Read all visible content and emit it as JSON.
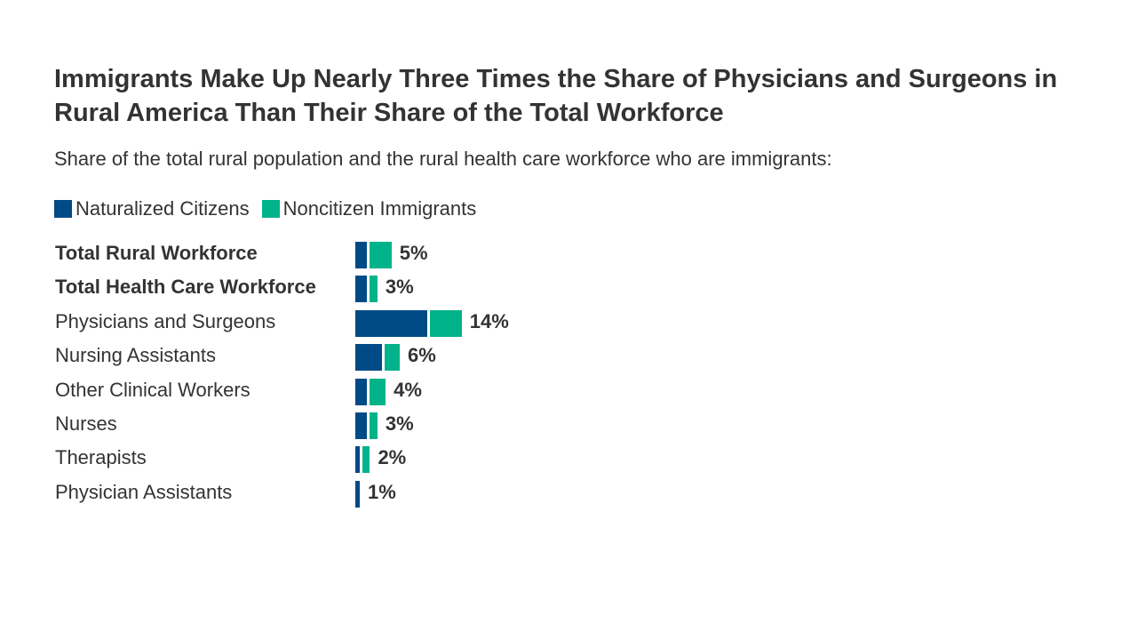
{
  "chart_data": {
    "type": "bar",
    "stacked": true,
    "orientation": "horizontal",
    "title": "Immigrants Make Up Nearly Three Times the Share of Physicians and Surgeons in Rural America Than Their Share of the Total Workforce",
    "subtitle": "Share of the total rural population and the rural health care workforce who are immigrants:",
    "legend_position": "top-left",
    "grid": false,
    "categories": [
      "Total Rural Workforce",
      "Total Health Care Workforce",
      "Physicians and Surgeons",
      "Nursing Assistants",
      "Other Clinical Workers",
      "Nurses",
      "Therapists",
      "Physician Assistants"
    ],
    "bold_categories": [
      "Total Rural Workforce",
      "Total Health Care Workforce"
    ],
    "series": [
      {
        "name": "Naturalized Citizens",
        "color": "#004a86",
        "values": [
          1.5,
          1.5,
          9.7,
          3.6,
          1.5,
          1.5,
          0.6,
          0.6
        ]
      },
      {
        "name": "Noncitizen Immigrants",
        "color": "#00b38a",
        "values": [
          3.0,
          1.1,
          4.2,
          2.0,
          2.2,
          1.1,
          1.0,
          0
        ]
      }
    ],
    "data_labels": [
      "5%",
      "3%",
      "14%",
      "6%",
      "4%",
      "3%",
      "2%",
      "1%"
    ]
  }
}
